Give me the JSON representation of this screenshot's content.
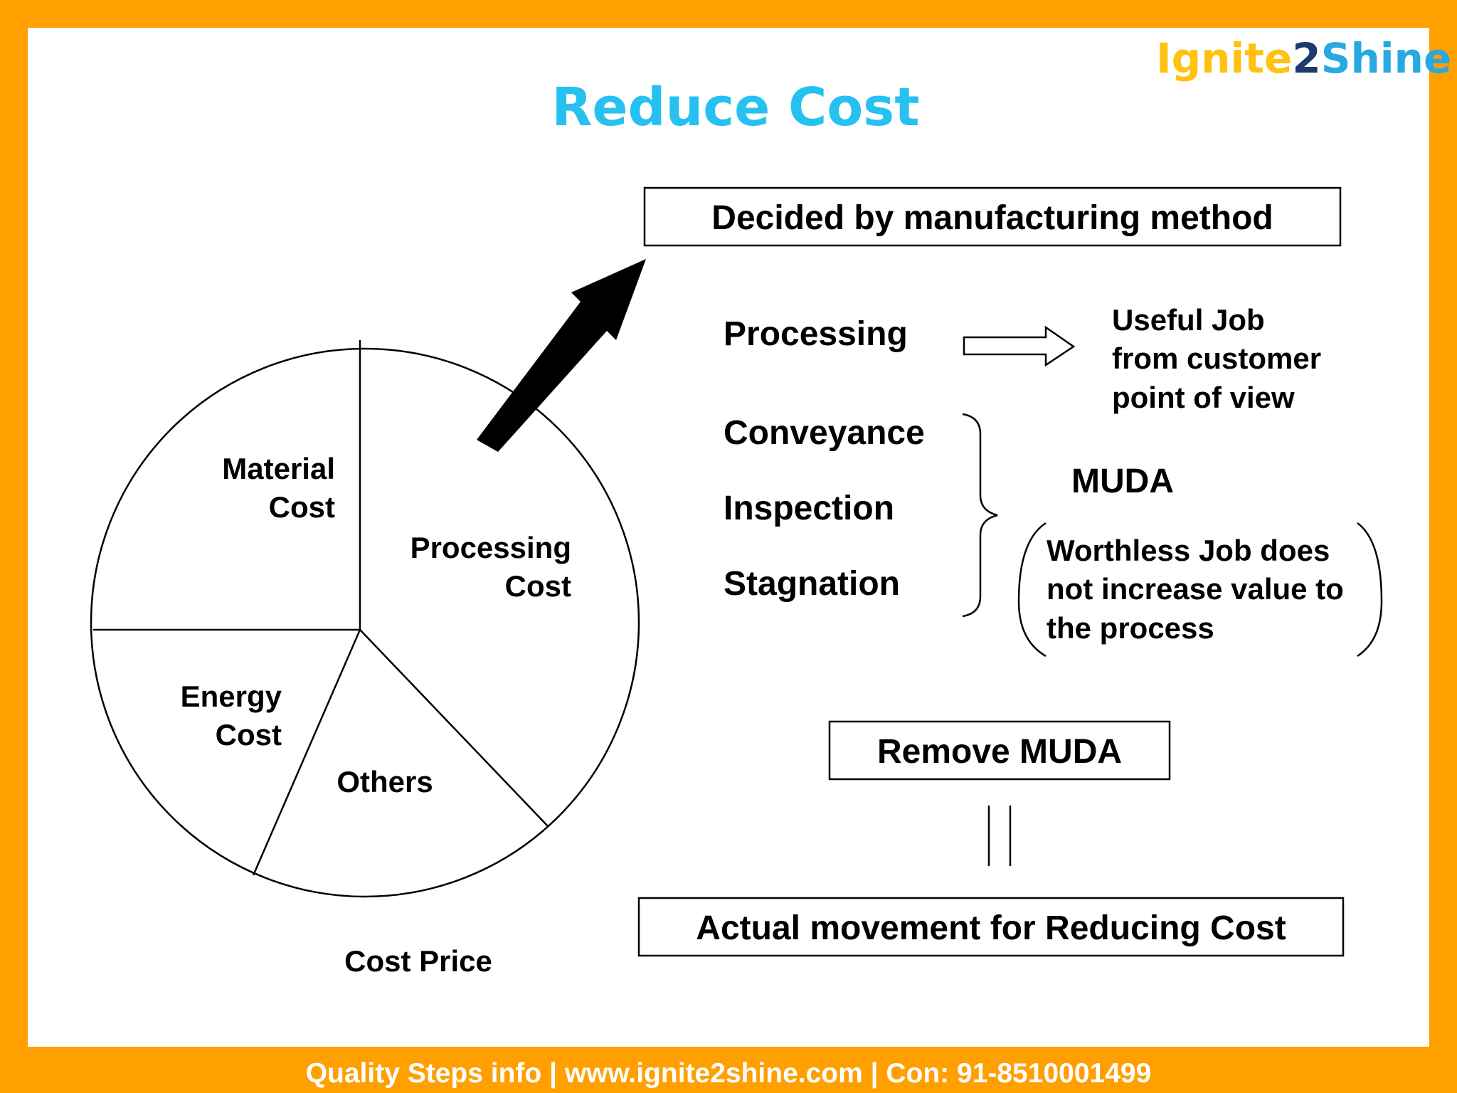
{
  "logo": {
    "part1": "Ignite",
    "part2": "2",
    "part3": "Shine",
    "colors": {
      "part1": "#FFC20E",
      "part2": "#1C3A6E",
      "part3": "#27A9E1"
    }
  },
  "title": "Reduce Cost",
  "title_color": "#27C1F1",
  "pie": {
    "caption": "Cost Price",
    "slices": [
      {
        "line1": "Material",
        "line2": "Cost"
      },
      {
        "line1": "Processing",
        "line2": "Cost"
      },
      {
        "line1": "Energy",
        "line2": "Cost"
      },
      {
        "line1": "Others",
        "line2": ""
      }
    ]
  },
  "boxes": {
    "decided": "Decided by manufacturing method",
    "remove": "Remove MUDA",
    "actual": "Actual movement for Reducing Cost"
  },
  "activities": {
    "processing": "Processing",
    "conveyance": "Conveyance",
    "inspection": "Inspection",
    "stagnation": "Stagnation"
  },
  "useful": [
    "Useful Job",
    "from customer",
    "point of view"
  ],
  "muda": {
    "label": "MUDA",
    "description": [
      "Worthless Job does",
      "not increase value to",
      "the process"
    ]
  },
  "footer": "Quality Steps info | www.ignite2shine.com | Con: 91-8510001499",
  "border_color": "#FF9F00"
}
